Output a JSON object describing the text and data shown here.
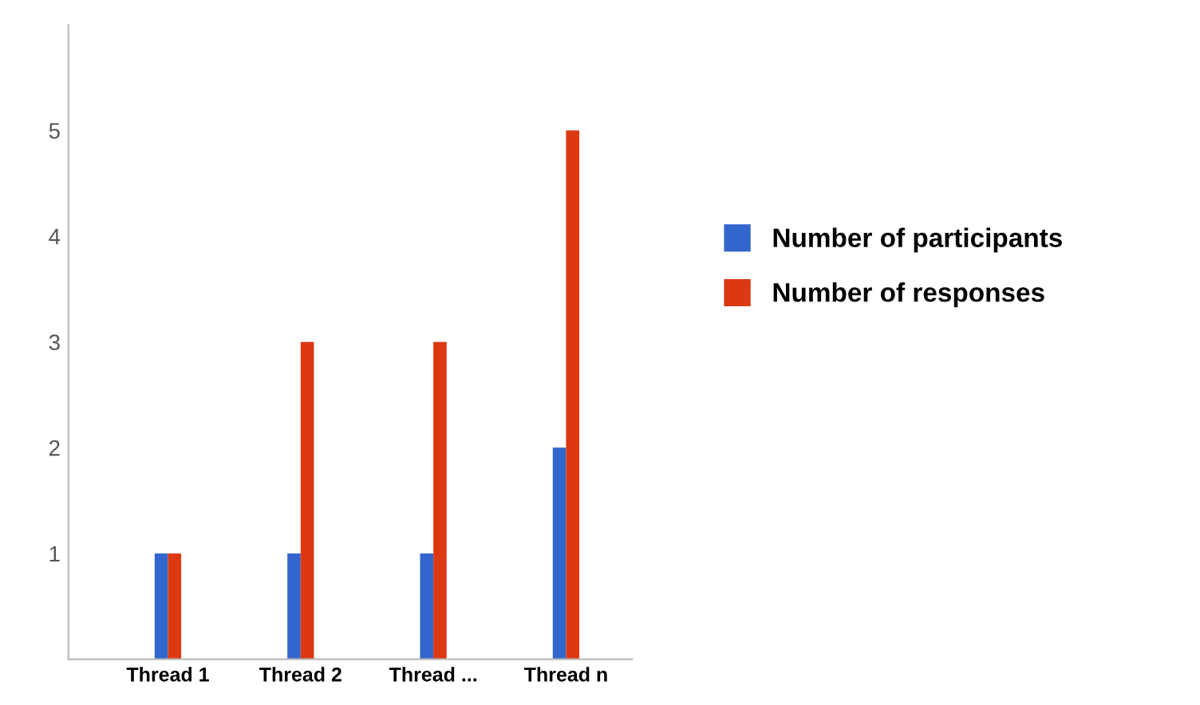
{
  "chart_data": {
    "type": "bar",
    "categories": [
      "Thread 1",
      "Thread 2",
      "Thread ...",
      "Thread n"
    ],
    "series": [
      {
        "name": "Number of participants",
        "color": "#3366cc",
        "values": [
          1,
          1,
          1,
          2
        ]
      },
      {
        "name": "Number of responses",
        "color": "#dc3912",
        "values": [
          1,
          3,
          3,
          5
        ]
      }
    ],
    "ylim": [
      0,
      6
    ],
    "yticks": [
      1,
      2,
      3,
      4,
      5
    ],
    "grid": false,
    "legend": "right"
  }
}
